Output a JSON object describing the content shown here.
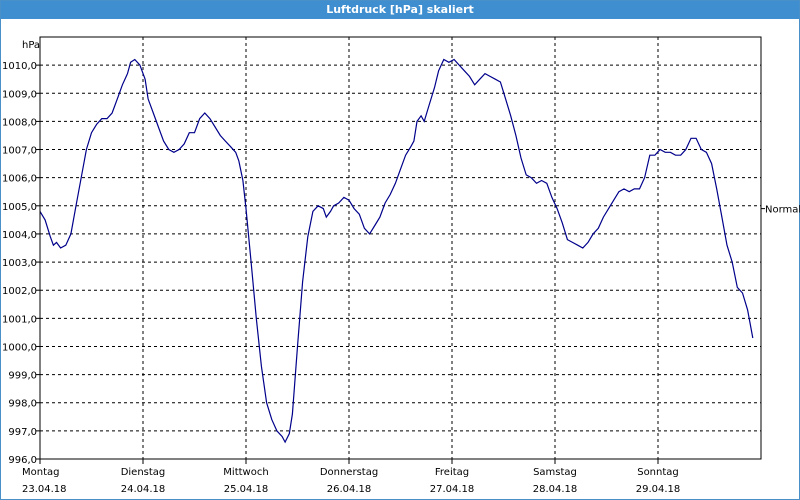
{
  "window": {
    "title": "Luftdruck [hPa] skaliert"
  },
  "chart_data": {
    "type": "line",
    "title": "Luftdruck [hPa] skaliert",
    "ylabel": "hPa",
    "ylim": [
      996.0,
      1011.0
    ],
    "yticks": [
      996.0,
      997.0,
      998.0,
      999.0,
      1000.0,
      1001.0,
      1002.0,
      1003.0,
      1004.0,
      1005.0,
      1006.0,
      1007.0,
      1008.0,
      1009.0,
      1010.0
    ],
    "ytick_labels": [
      "996,0",
      "997,0",
      "998,0",
      "999,0",
      "1000,0",
      "1001,0",
      "1002,0",
      "1003,0",
      "1004,0",
      "1005,0",
      "1006,0",
      "1007,0",
      "1008,0",
      "1009,0",
      "1010,0"
    ],
    "xlim": [
      0,
      7
    ],
    "x_unit": "days from 23.04.18",
    "x_ticks": [
      {
        "x": 0,
        "day": "Montag",
        "date": "23.04.18"
      },
      {
        "x": 1,
        "day": "Dienstag",
        "date": "24.04.18"
      },
      {
        "x": 2,
        "day": "Mittwoch",
        "date": "25.04.18"
      },
      {
        "x": 3,
        "day": "Donnerstag",
        "date": "26.04.18"
      },
      {
        "x": 4,
        "day": "Freitag",
        "date": "27.04.18"
      },
      {
        "x": 5,
        "day": "Samstag",
        "date": "28.04.18"
      },
      {
        "x": 6,
        "day": "Sonntag",
        "date": "29.04.18"
      }
    ],
    "reference_line": {
      "label": "Normal",
      "value": 1004.9
    },
    "grid": true,
    "series": [
      {
        "color": "#00008b",
        "points": [
          [
            0.0,
            1004.8
          ],
          [
            0.05,
            1004.5
          ],
          [
            0.1,
            1003.9
          ],
          [
            0.13,
            1003.6
          ],
          [
            0.16,
            1003.7
          ],
          [
            0.2,
            1003.5
          ],
          [
            0.25,
            1003.6
          ],
          [
            0.3,
            1004.0
          ],
          [
            0.35,
            1005.0
          ],
          [
            0.4,
            1006.0
          ],
          [
            0.45,
            1007.0
          ],
          [
            0.5,
            1007.6
          ],
          [
            0.55,
            1007.9
          ],
          [
            0.6,
            1008.1
          ],
          [
            0.65,
            1008.1
          ],
          [
            0.7,
            1008.3
          ],
          [
            0.75,
            1008.8
          ],
          [
            0.8,
            1009.3
          ],
          [
            0.85,
            1009.7
          ],
          [
            0.88,
            1010.1
          ],
          [
            0.92,
            1010.2
          ],
          [
            0.97,
            1010.0
          ],
          [
            1.02,
            1009.5
          ],
          [
            1.05,
            1008.8
          ],
          [
            1.1,
            1008.3
          ],
          [
            1.15,
            1007.8
          ],
          [
            1.2,
            1007.3
          ],
          [
            1.25,
            1007.0
          ],
          [
            1.3,
            1006.9
          ],
          [
            1.35,
            1007.0
          ],
          [
            1.4,
            1007.2
          ],
          [
            1.45,
            1007.6
          ],
          [
            1.5,
            1007.6
          ],
          [
            1.55,
            1008.1
          ],
          [
            1.6,
            1008.3
          ],
          [
            1.65,
            1008.1
          ],
          [
            1.7,
            1007.8
          ],
          [
            1.75,
            1007.5
          ],
          [
            1.8,
            1007.3
          ],
          [
            1.85,
            1007.1
          ],
          [
            1.9,
            1006.9
          ],
          [
            1.93,
            1006.6
          ],
          [
            1.97,
            1005.9
          ],
          [
            2.0,
            1004.9
          ],
          [
            2.05,
            1003.0
          ],
          [
            2.1,
            1001.0
          ],
          [
            2.15,
            999.3
          ],
          [
            2.2,
            998.0
          ],
          [
            2.25,
            997.4
          ],
          [
            2.3,
            997.0
          ],
          [
            2.35,
            996.8
          ],
          [
            2.38,
            996.6
          ],
          [
            2.42,
            996.9
          ],
          [
            2.45,
            997.6
          ],
          [
            2.5,
            1000.0
          ],
          [
            2.55,
            1002.3
          ],
          [
            2.6,
            1003.9
          ],
          [
            2.65,
            1004.8
          ],
          [
            2.7,
            1005.0
          ],
          [
            2.75,
            1004.9
          ],
          [
            2.78,
            1004.6
          ],
          [
            2.82,
            1004.8
          ],
          [
            2.85,
            1005.0
          ],
          [
            2.9,
            1005.1
          ],
          [
            2.95,
            1005.3
          ],
          [
            3.0,
            1005.2
          ],
          [
            3.05,
            1004.9
          ],
          [
            3.1,
            1004.7
          ],
          [
            3.15,
            1004.2
          ],
          [
            3.2,
            1004.0
          ],
          [
            3.25,
            1004.3
          ],
          [
            3.3,
            1004.6
          ],
          [
            3.35,
            1005.1
          ],
          [
            3.4,
            1005.4
          ],
          [
            3.45,
            1005.8
          ],
          [
            3.5,
            1006.3
          ],
          [
            3.55,
            1006.8
          ],
          [
            3.6,
            1007.1
          ],
          [
            3.63,
            1007.3
          ],
          [
            3.66,
            1008.0
          ],
          [
            3.7,
            1008.2
          ],
          [
            3.73,
            1008.0
          ],
          [
            3.78,
            1008.6
          ],
          [
            3.83,
            1009.2
          ],
          [
            3.87,
            1009.8
          ],
          [
            3.92,
            1010.2
          ],
          [
            3.97,
            1010.1
          ],
          [
            4.02,
            1010.2
          ],
          [
            4.07,
            1010.0
          ],
          [
            4.12,
            1009.8
          ],
          [
            4.17,
            1009.6
          ],
          [
            4.22,
            1009.3
          ],
          [
            4.27,
            1009.5
          ],
          [
            4.32,
            1009.7
          ],
          [
            4.37,
            1009.6
          ],
          [
            4.42,
            1009.5
          ],
          [
            4.47,
            1009.4
          ],
          [
            4.52,
            1008.8
          ],
          [
            4.57,
            1008.2
          ],
          [
            4.62,
            1007.5
          ],
          [
            4.67,
            1006.7
          ],
          [
            4.72,
            1006.1
          ],
          [
            4.77,
            1006.0
          ],
          [
            4.82,
            1005.8
          ],
          [
            4.87,
            1005.9
          ],
          [
            4.92,
            1005.8
          ],
          [
            4.97,
            1005.3
          ],
          [
            5.02,
            1004.9
          ],
          [
            5.07,
            1004.4
          ],
          [
            5.12,
            1003.8
          ],
          [
            5.17,
            1003.7
          ],
          [
            5.22,
            1003.6
          ],
          [
            5.27,
            1003.5
          ],
          [
            5.32,
            1003.7
          ],
          [
            5.37,
            1004.0
          ],
          [
            5.42,
            1004.2
          ],
          [
            5.47,
            1004.6
          ],
          [
            5.52,
            1004.9
          ],
          [
            5.57,
            1005.2
          ],
          [
            5.62,
            1005.5
          ],
          [
            5.67,
            1005.6
          ],
          [
            5.72,
            1005.5
          ],
          [
            5.77,
            1005.6
          ],
          [
            5.82,
            1005.6
          ],
          [
            5.87,
            1006.0
          ],
          [
            5.92,
            1006.8
          ],
          [
            5.97,
            1006.8
          ],
          [
            6.02,
            1007.0
          ],
          [
            6.07,
            1006.9
          ],
          [
            6.12,
            1006.9
          ],
          [
            6.17,
            1006.8
          ],
          [
            6.22,
            1006.8
          ],
          [
            6.27,
            1007.0
          ],
          [
            6.32,
            1007.4
          ],
          [
            6.37,
            1007.4
          ],
          [
            6.42,
            1007.0
          ],
          [
            6.47,
            1006.9
          ],
          [
            6.52,
            1006.5
          ],
          [
            6.57,
            1005.6
          ],
          [
            6.62,
            1004.6
          ],
          [
            6.67,
            1003.6
          ],
          [
            6.72,
            1003.0
          ],
          [
            6.77,
            1002.1
          ],
          [
            6.82,
            1001.9
          ],
          [
            6.87,
            1001.3
          ],
          [
            6.92,
            1000.3
          ]
        ]
      }
    ]
  }
}
